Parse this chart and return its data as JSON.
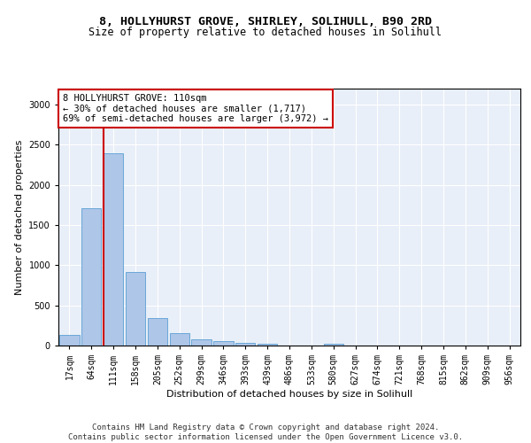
{
  "title1": "8, HOLLYHURST GROVE, SHIRLEY, SOLIHULL, B90 2RD",
  "title2": "Size of property relative to detached houses in Solihull",
  "xlabel": "Distribution of detached houses by size in Solihull",
  "ylabel": "Number of detached properties",
  "bar_labels": [
    "17sqm",
    "64sqm",
    "111sqm",
    "158sqm",
    "205sqm",
    "252sqm",
    "299sqm",
    "346sqm",
    "393sqm",
    "439sqm",
    "486sqm",
    "533sqm",
    "580sqm",
    "627sqm",
    "674sqm",
    "721sqm",
    "768sqm",
    "815sqm",
    "862sqm",
    "909sqm",
    "956sqm"
  ],
  "bar_values": [
    130,
    1710,
    2390,
    920,
    340,
    155,
    80,
    50,
    35,
    25,
    0,
    0,
    25,
    0,
    0,
    0,
    0,
    0,
    0,
    0,
    0
  ],
  "bar_color": "#aec6e8",
  "bar_edge_color": "#5a9fd4",
  "vline_bin_index": 2,
  "vline_color": "#cc0000",
  "annotation_text": "8 HOLLYHURST GROVE: 110sqm\n← 30% of detached houses are smaller (1,717)\n69% of semi-detached houses are larger (3,972) →",
  "annotation_box_color": "#ffffff",
  "annotation_box_edge_color": "#cc0000",
  "annotation_fontsize": 7.5,
  "ylim": [
    0,
    3200
  ],
  "yticks": [
    0,
    500,
    1000,
    1500,
    2000,
    2500,
    3000
  ],
  "background_color": "#e8eff8",
  "footer_text": "Contains HM Land Registry data © Crown copyright and database right 2024.\nContains public sector information licensed under the Open Government Licence v3.0.",
  "title1_fontsize": 9.5,
  "title2_fontsize": 8.5,
  "xlabel_fontsize": 8,
  "ylabel_fontsize": 8,
  "tick_fontsize": 7,
  "footer_fontsize": 6.5
}
